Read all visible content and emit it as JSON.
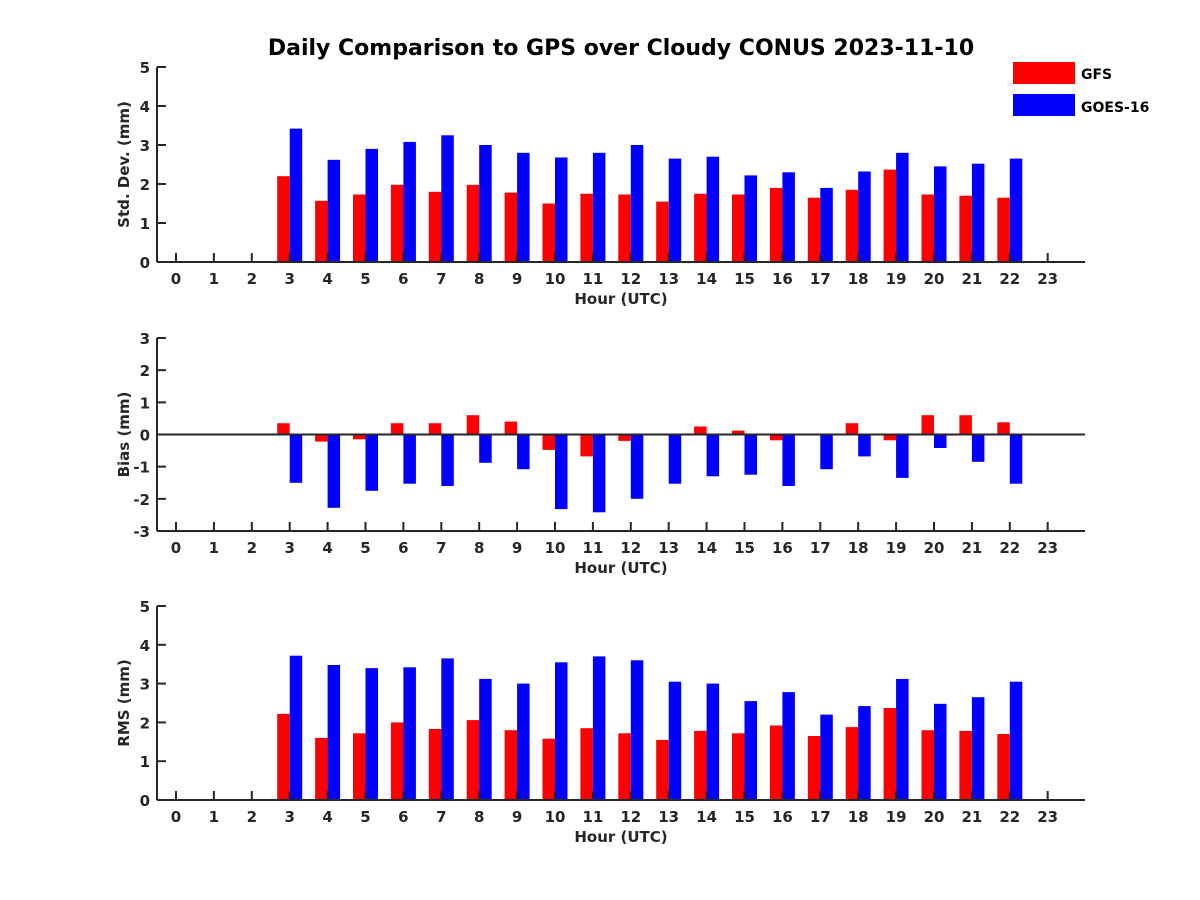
{
  "colors": {
    "GFS": "#ff0000",
    "GOES-16": "#0000ff"
  },
  "chart_data": {
    "type": "bar",
    "title": "Daily Comparison to GPS over Cloudy CONUS 2023-11-10",
    "legend": {
      "placement": "top-right",
      "entries": [
        "GFS",
        "GOES-16"
      ]
    },
    "panels": [
      {
        "ylabel": "Std. Dev. (mm)",
        "xlabel": "Hour (UTC)",
        "ylim": [
          0,
          5
        ],
        "yticks": [
          "0",
          "1",
          "2",
          "3",
          "4",
          "5"
        ],
        "categories": [
          "0",
          "1",
          "2",
          "3",
          "4",
          "5",
          "6",
          "7",
          "8",
          "9",
          "10",
          "11",
          "12",
          "13",
          "14",
          "15",
          "16",
          "17",
          "18",
          "19",
          "20",
          "21",
          "22",
          "23"
        ],
        "series": [
          {
            "name": "GFS",
            "values": [
              null,
              null,
              null,
              2.2,
              1.57,
              1.73,
              1.98,
              1.8,
              1.98,
              1.78,
              1.5,
              1.75,
              1.73,
              1.55,
              1.75,
              1.73,
              1.9,
              1.65,
              1.85,
              2.37,
              1.73,
              1.7,
              1.65,
              null
            ]
          },
          {
            "name": "GOES-16",
            "values": [
              null,
              null,
              null,
              3.42,
              2.62,
              2.9,
              3.08,
              3.25,
              3.0,
              2.8,
              2.68,
              2.8,
              3.0,
              2.65,
              2.7,
              2.22,
              2.3,
              1.9,
              2.32,
              2.8,
              2.45,
              2.52,
              2.65,
              null
            ]
          }
        ]
      },
      {
        "ylabel": "Bias (mm)",
        "xlabel": "Hour (UTC)",
        "ylim": [
          -3,
          3
        ],
        "yticks": [
          "-3",
          "-2",
          "-1",
          "0",
          "1",
          "2",
          "3"
        ],
        "categories": [
          "0",
          "1",
          "2",
          "3",
          "4",
          "5",
          "6",
          "7",
          "8",
          "9",
          "10",
          "11",
          "12",
          "13",
          "14",
          "15",
          "16",
          "17",
          "18",
          "19",
          "20",
          "21",
          "22",
          "23"
        ],
        "series": [
          {
            "name": "GFS",
            "values": [
              null,
              null,
              null,
              0.35,
              -0.22,
              -0.15,
              0.35,
              0.35,
              0.6,
              0.4,
              -0.48,
              -0.68,
              -0.2,
              0.02,
              0.25,
              0.12,
              -0.18,
              -0.02,
              0.35,
              -0.18,
              0.6,
              0.6,
              0.38,
              null
            ]
          },
          {
            "name": "GOES-16",
            "values": [
              null,
              null,
              null,
              -1.5,
              -2.28,
              -1.75,
              -1.53,
              -1.6,
              -0.88,
              -1.08,
              -2.32,
              -2.42,
              -2.0,
              -1.53,
              -1.3,
              -1.25,
              -1.6,
              -1.08,
              -0.68,
              -1.35,
              -0.42,
              -0.85,
              -1.53,
              null
            ]
          }
        ]
      },
      {
        "ylabel": "RMS (mm)",
        "xlabel": "Hour (UTC)",
        "ylim": [
          0,
          5
        ],
        "yticks": [
          "0",
          "1",
          "2",
          "3",
          "4",
          "5"
        ],
        "categories": [
          "0",
          "1",
          "2",
          "3",
          "4",
          "5",
          "6",
          "7",
          "8",
          "9",
          "10",
          "11",
          "12",
          "13",
          "14",
          "15",
          "16",
          "17",
          "18",
          "19",
          "20",
          "21",
          "22",
          "23"
        ],
        "series": [
          {
            "name": "GFS",
            "values": [
              null,
              null,
              null,
              2.22,
              1.6,
              1.72,
              2.0,
              1.83,
              2.06,
              1.8,
              1.58,
              1.85,
              1.72,
              1.55,
              1.78,
              1.72,
              1.92,
              1.65,
              1.88,
              2.37,
              1.8,
              1.78,
              1.7,
              null
            ]
          },
          {
            "name": "GOES-16",
            "values": [
              null,
              null,
              null,
              3.72,
              3.48,
              3.4,
              3.42,
              3.65,
              3.12,
              3.0,
              3.55,
              3.7,
              3.6,
              3.05,
              3.0,
              2.55,
              2.78,
              2.2,
              2.42,
              3.12,
              2.48,
              2.65,
              3.05,
              null
            ]
          }
        ]
      }
    ]
  }
}
